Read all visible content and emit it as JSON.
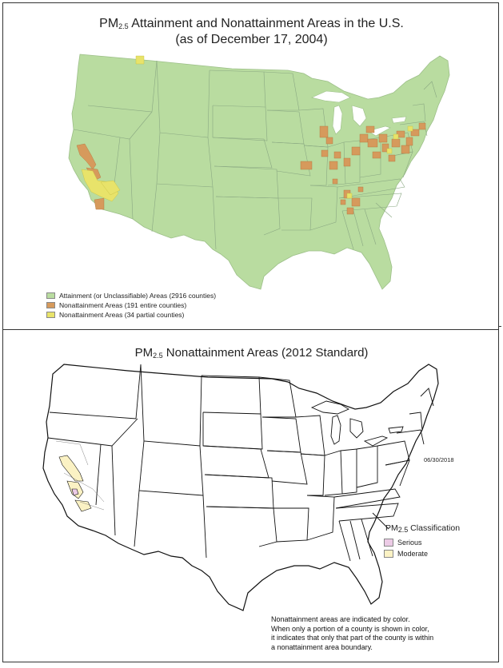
{
  "top_map": {
    "title_prefix": "PM",
    "title_sub": "2.5",
    "title_rest": " Attainment and Nonattainment Areas in the U.S.",
    "subtitle": "(as of December 17, 2004)",
    "legend": [
      {
        "label": "Attainment (or Unclassifiable) Areas (2916 counties)",
        "color": "#b9dca0"
      },
      {
        "label": "Nonattainment Areas (191 entire counties)",
        "color": "#d69a5c"
      },
      {
        "label": "Nonattainment Areas (34 partial counties)",
        "color": "#e8e36a"
      }
    ]
  },
  "bottom_map": {
    "title_prefix": "PM",
    "title_sub": "2.5",
    "title_rest": " Nonattainment Areas (2012 Standard)",
    "date": "06/30/2018",
    "legend_title_prefix": "PM",
    "legend_title_sub": "2.5",
    "legend_title_rest": " Classification",
    "legend": [
      {
        "label": "Serious",
        "color": "#eccbe6"
      },
      {
        "label": "Moderate",
        "color": "#fbf2c4"
      }
    ],
    "note_lines": [
      "Nonattainment areas are indicated by color.",
      "When only a portion of a county is shown in color,",
      "it indicates that only that part of the county is within",
      "a nonattainment area boundary."
    ]
  },
  "colors": {
    "attainment": "#b9dca0",
    "nonattainment_entire": "#d69a5c",
    "nonattainment_partial": "#e8e36a",
    "state_line": "#8aa882",
    "outline": "#111111"
  }
}
